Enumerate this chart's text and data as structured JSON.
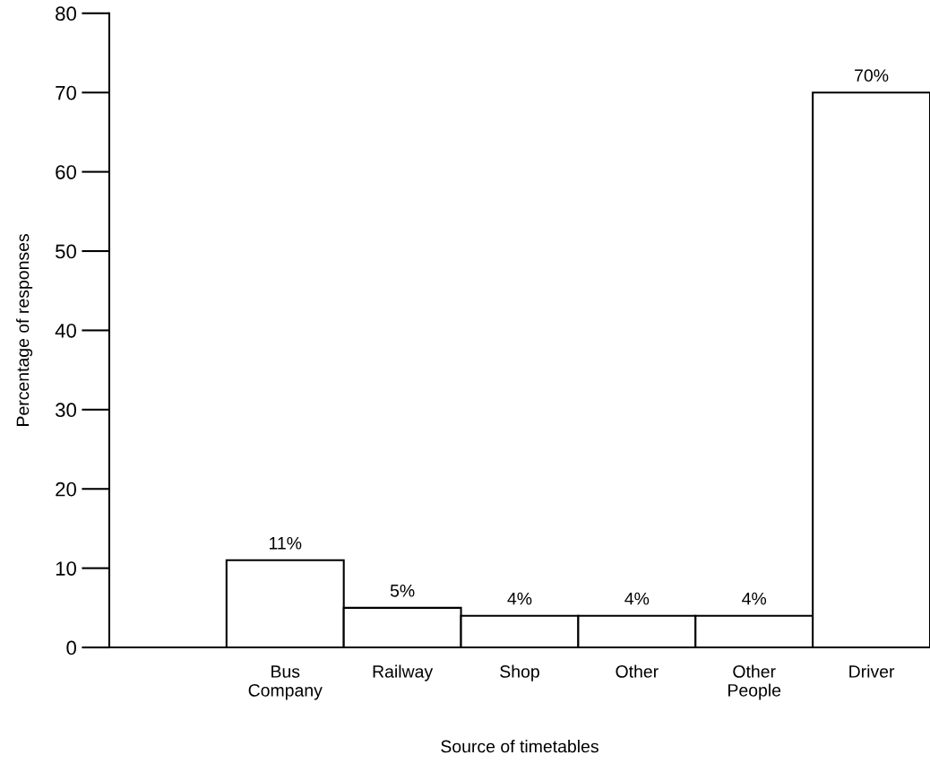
{
  "chart_data": {
    "type": "bar",
    "xlabel": "Source of timetables",
    "ylabel": "Percentage of responses",
    "categories": [
      null,
      "Bus Company",
      "Railway",
      "Shop",
      "Other",
      "Other People",
      "Driver"
    ],
    "values": [
      null,
      11,
      5,
      4,
      4,
      4,
      70
    ],
    "value_labels": [
      null,
      "11%",
      "5%",
      "4%",
      "4%",
      "4%",
      "70%"
    ],
    "color": "#ffffff",
    "ylim": [
      0,
      80
    ],
    "yticks": [
      0,
      10,
      20,
      30,
      40,
      50,
      60,
      70,
      80
    ],
    "grid": false,
    "legend": false
  }
}
